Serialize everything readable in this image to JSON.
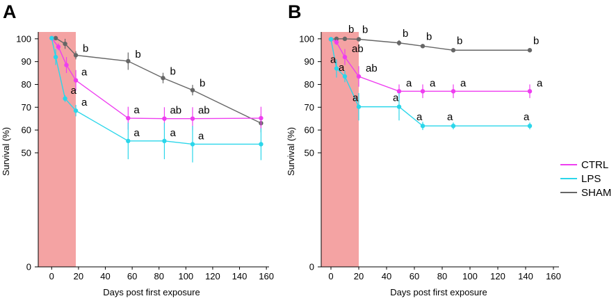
{
  "colors": {
    "CTRL": "#ee3ef0",
    "LPS": "#2bd6ea",
    "SHAM": "#666666",
    "shade": "#f4a3a3"
  },
  "legend": [
    {
      "name": "CTRL",
      "color": "#ee3ef0"
    },
    {
      "name": "LPS",
      "color": "#2bd6ea"
    },
    {
      "name": "SHAM",
      "color": "#666666"
    }
  ],
  "chart_data": [
    {
      "panel": "A",
      "type": "line",
      "xlabel": "Days post first exposure",
      "ylabel": "Survival (%)",
      "xlim": [
        -10,
        162
      ],
      "ylim": [
        0,
        103
      ],
      "xticks": [
        0,
        20,
        40,
        60,
        80,
        100,
        120,
        140,
        160
      ],
      "yticks": [
        0,
        50,
        60,
        70,
        80,
        90,
        100
      ],
      "shaded_region": [
        -10,
        18
      ],
      "series": [
        {
          "name": "SHAM",
          "points": [
            {
              "x": 3,
              "y": 100.3,
              "err": 0,
              "label": ""
            },
            {
              "x": 10,
              "y": 97.8,
              "err": 2.2,
              "label": ""
            },
            {
              "x": 18,
              "y": 92.8,
              "err": 1.8,
              "label": "b"
            },
            {
              "x": 57,
              "y": 90.2,
              "err": 3.8,
              "label": "b"
            },
            {
              "x": 83,
              "y": 82.8,
              "err": 2.3,
              "label": "b"
            },
            {
              "x": 105,
              "y": 77.5,
              "err": 2.3,
              "label": "b"
            },
            {
              "x": 156,
              "y": 63.0,
              "err": 4.0,
              "label": ""
            }
          ]
        },
        {
          "name": "CTRL",
          "points": [
            {
              "x": 0,
              "y": 100.3,
              "err": 0,
              "label": ""
            },
            {
              "x": 5,
              "y": 96.5,
              "err": 1.5,
              "label": ""
            },
            {
              "x": 11,
              "y": 88.5,
              "err": 3.5,
              "label": ""
            },
            {
              "x": 18,
              "y": 81.8,
              "err": 4.5,
              "label": "a"
            },
            {
              "x": 57,
              "y": 65.2,
              "err": 5.0,
              "label": "a"
            },
            {
              "x": 84,
              "y": 65.0,
              "err": 5.0,
              "label": "ab"
            },
            {
              "x": 105,
              "y": 65.0,
              "err": 5.0,
              "label": "ab"
            },
            {
              "x": 156,
              "y": 65.2,
              "err": 5.0,
              "label": ""
            }
          ]
        },
        {
          "name": "LPS",
          "points": [
            {
              "x": 0,
              "y": 100.3,
              "err": 0,
              "label": ""
            },
            {
              "x": 3,
              "y": 92.0,
              "err": 3.5,
              "label": ""
            },
            {
              "x": 10,
              "y": 73.8,
              "err": 1.5,
              "label": "a"
            },
            {
              "x": 18,
              "y": 68.5,
              "err": 2.5,
              "label": "a"
            },
            {
              "x": 57,
              "y": 55.2,
              "err": 8.0,
              "label": "a"
            },
            {
              "x": 84,
              "y": 55.2,
              "err": 8.0,
              "label": "a"
            },
            {
              "x": 105,
              "y": 53.8,
              "err": 8.0,
              "label": "a"
            },
            {
              "x": 156,
              "y": 53.8,
              "err": 7.0,
              "label": ""
            }
          ]
        }
      ]
    },
    {
      "panel": "B",
      "type": "line",
      "xlabel": "Days post first exposure",
      "ylabel": "Survival (%)",
      "xlim": [
        -7,
        164
      ],
      "ylim": [
        0,
        103
      ],
      "xticks": [
        0,
        20,
        40,
        60,
        80,
        100,
        120,
        140,
        160
      ],
      "yticks": [
        0,
        50,
        60,
        70,
        80,
        90,
        100
      ],
      "shaded_region": [
        -7,
        20
      ],
      "series": [
        {
          "name": "SHAM",
          "points": [
            {
              "x": 0,
              "y": 99.8,
              "err": 0,
              "label": ""
            },
            {
              "x": 4,
              "y": 100.0,
              "err": 0,
              "label": ""
            },
            {
              "x": 10,
              "y": 100.0,
              "err": 0,
              "label": "b"
            },
            {
              "x": 20,
              "y": 99.8,
              "err": 0,
              "label": "b"
            },
            {
              "x": 49,
              "y": 98.2,
              "err": 1.2,
              "label": "b"
            },
            {
              "x": 66,
              "y": 96.8,
              "err": 0,
              "label": "b"
            },
            {
              "x": 88,
              "y": 95.0,
              "err": 0,
              "label": "b"
            },
            {
              "x": 143,
              "y": 95.0,
              "err": 0,
              "label": "b"
            }
          ]
        },
        {
          "name": "CTRL",
          "points": [
            {
              "x": 0,
              "y": 99.8,
              "err": 0,
              "label": ""
            },
            {
              "x": 4,
              "y": 98.5,
              "err": 1.2,
              "label": ""
            },
            {
              "x": 10,
              "y": 92.0,
              "err": 3.5,
              "label": "ab"
            },
            {
              "x": 20,
              "y": 83.5,
              "err": 4.5,
              "label": "ab"
            },
            {
              "x": 49,
              "y": 77.0,
              "err": 3.0,
              "label": "a"
            },
            {
              "x": 66,
              "y": 77.0,
              "err": 3.0,
              "label": "a"
            },
            {
              "x": 88,
              "y": 77.0,
              "err": 3.0,
              "label": "a"
            },
            {
              "x": 143,
              "y": 77.0,
              "err": 3.0,
              "label": "a"
            }
          ]
        },
        {
          "name": "LPS",
          "points": [
            {
              "x": 0,
              "y": 99.8,
              "err": 0,
              "label": ""
            },
            {
              "x": 4,
              "y": 87.0,
              "err": 4.0,
              "label": "a"
            },
            {
              "x": 10,
              "y": 83.5,
              "err": 2.5,
              "label": "a"
            },
            {
              "x": 20,
              "y": 70.2,
              "err": 6.0,
              "label": "a"
            },
            {
              "x": 49,
              "y": 70.2,
              "err": 6.0,
              "label": "a"
            },
            {
              "x": 66,
              "y": 61.8,
              "err": 1.8,
              "label": "a"
            },
            {
              "x": 88,
              "y": 61.8,
              "err": 1.5,
              "label": "a"
            },
            {
              "x": 143,
              "y": 61.8,
              "err": 1.5,
              "label": "a"
            }
          ]
        }
      ]
    }
  ]
}
